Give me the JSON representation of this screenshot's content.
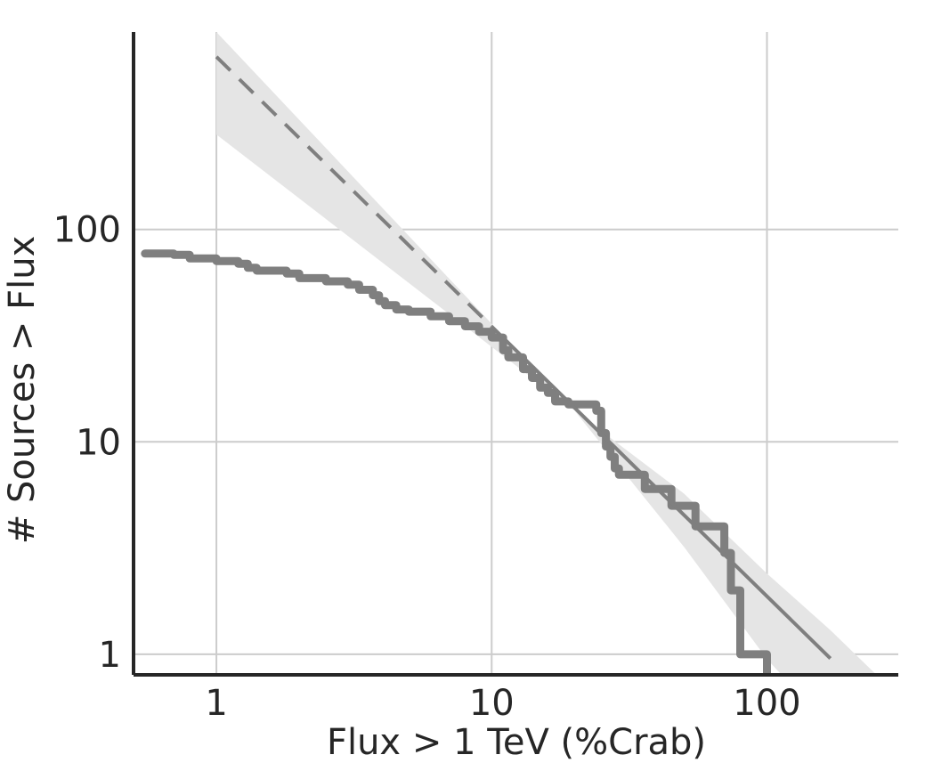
{
  "chart_data": {
    "type": "line",
    "title": "",
    "xlabel": "Flux > 1 TeV (%Crab)",
    "ylabel": "# Sources > Flux",
    "x_scale": "log",
    "y_scale": "log",
    "xlim": [
      0.5,
      300
    ],
    "ylim": [
      0.8,
      850
    ],
    "grid": true,
    "legend": "none",
    "x_ticks": [
      {
        "value": 1,
        "label": "1"
      },
      {
        "value": 10,
        "label": "10"
      },
      {
        "value": 100,
        "label": "100"
      }
    ],
    "y_ticks": [
      {
        "value": 1,
        "label": "1"
      },
      {
        "value": 10,
        "label": "10"
      },
      {
        "value": 100,
        "label": "100"
      }
    ],
    "colors": {
      "series": "#7f7f7f",
      "band": "#e5e5e5",
      "grid": "#cccccc",
      "axis": "#262626"
    },
    "series": [
      {
        "kind": "step",
        "points": [
          [
            0.55,
            77
          ],
          [
            0.7,
            76
          ],
          [
            0.8,
            73
          ],
          [
            1.0,
            71
          ],
          [
            1.2,
            69
          ],
          [
            1.3,
            66
          ],
          [
            1.4,
            64
          ],
          [
            1.8,
            62
          ],
          [
            2.0,
            59
          ],
          [
            2.5,
            57
          ],
          [
            3.0,
            55
          ],
          [
            3.3,
            52
          ],
          [
            3.7,
            49
          ],
          [
            3.9,
            46
          ],
          [
            4.1,
            44
          ],
          [
            4.5,
            42
          ],
          [
            5.0,
            41
          ],
          [
            6.0,
            39
          ],
          [
            7.0,
            37
          ],
          [
            8.0,
            35
          ],
          [
            9.0,
            33
          ],
          [
            10,
            31
          ],
          [
            11,
            27
          ],
          [
            11.5,
            25
          ],
          [
            13,
            22
          ],
          [
            14,
            20
          ],
          [
            15,
            18
          ],
          [
            16,
            17
          ],
          [
            17,
            15.5
          ],
          [
            19,
            15
          ],
          [
            24,
            14
          ],
          [
            25,
            11
          ],
          [
            26,
            9.5
          ],
          [
            27,
            8.5
          ],
          [
            28,
            7.5
          ],
          [
            29,
            7
          ],
          [
            36,
            6
          ],
          [
            45,
            5
          ],
          [
            55,
            4
          ],
          [
            70,
            3
          ],
          [
            74,
            2
          ],
          [
            80,
            1
          ],
          [
            100,
            0.8
          ]
        ]
      },
      {
        "kind": "fit",
        "x_range": [
          1,
          170
        ],
        "y_at_1": 650,
        "slope": -1.27,
        "dashed_below_x": 10
      }
    ],
    "band": {
      "points": [
        [
          1,
          280,
          850
        ],
        [
          10,
          28,
          36
        ],
        [
          20,
          14,
          14
        ],
        [
          50,
          3.2,
          5.7
        ],
        [
          100,
          0.95,
          2.4
        ],
        [
          170,
          0.45,
          1.3
        ],
        [
          250,
          0.3,
          0.8
        ]
      ]
    }
  }
}
